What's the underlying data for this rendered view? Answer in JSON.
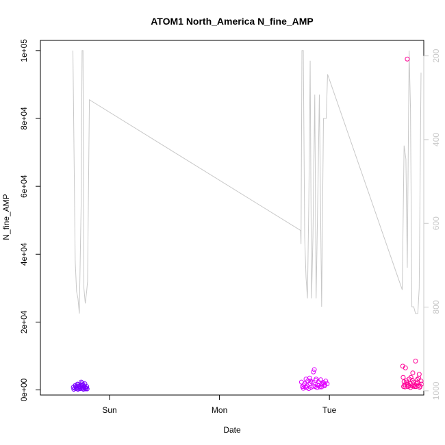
{
  "chart_data": {
    "type": "scatter",
    "title": "ATOM1 North_America N_fine_AMP",
    "xlabel": "Date",
    "ylabel": "N_fine_AMP",
    "ylabel_right": "",
    "x_tick_labels": [
      "Sun",
      "Mon",
      "Tue"
    ],
    "y_tick_labels": [
      "0e+00",
      "2e+04",
      "4e+04",
      "6e+04",
      "8e+04",
      "1e+05"
    ],
    "y_ticks": [
      0,
      20000,
      40000,
      60000,
      80000,
      100000
    ],
    "y_right_tick_labels": [
      "200",
      "400",
      "600",
      "800",
      "1000"
    ],
    "y_right_ticks": [
      200,
      400,
      600,
      800,
      1000
    ],
    "xlim_hours": [
      -15.1,
      68.6
    ],
    "ylim": [
      -1500,
      103000
    ],
    "y2lim": [
      1010,
      163
    ],
    "x_tick_hours": [
      0,
      24,
      48
    ],
    "grid": false,
    "line_series": {
      "color": "#c8c8c8",
      "points": [
        [
          -8.0,
          100000
        ],
        [
          -7.5,
          38000
        ],
        [
          -7.2,
          29000
        ],
        [
          -6.9,
          27000
        ],
        [
          -6.6,
          22500
        ],
        [
          -6.2,
          55000
        ],
        [
          -6.0,
          100000
        ],
        [
          -5.8,
          100000
        ],
        [
          -5.6,
          30000
        ],
        [
          -5.3,
          25500
        ],
        [
          -5.0,
          29000
        ],
        [
          -4.8,
          32000
        ],
        [
          -4.4,
          85500
        ],
        [
          41.7,
          47000
        ],
        [
          41.8,
          43000
        ],
        [
          42.0,
          100000
        ],
        [
          42.3,
          100000
        ],
        [
          42.6,
          45000
        ],
        [
          42.9,
          33000
        ],
        [
          43.2,
          27000
        ],
        [
          43.5,
          55000
        ],
        [
          43.8,
          97000
        ],
        [
          44.1,
          27000
        ],
        [
          44.4,
          45000
        ],
        [
          44.8,
          87000
        ],
        [
          45.1,
          27000
        ],
        [
          45.5,
          60000
        ],
        [
          45.8,
          87000
        ],
        [
          46.3,
          24500
        ],
        [
          46.7,
          80000
        ],
        [
          47.3,
          80000
        ],
        [
          47.6,
          93000
        ],
        [
          63.9,
          29500
        ],
        [
          64.3,
          72000
        ],
        [
          64.7,
          68000
        ],
        [
          65.0,
          36000
        ],
        [
          65.4,
          100000
        ],
        [
          65.7,
          83000
        ],
        [
          66.0,
          24500
        ],
        [
          66.4,
          24500
        ],
        [
          66.8,
          22500
        ],
        [
          67.3,
          22500
        ],
        [
          67.6,
          30000
        ],
        [
          68.0,
          93500
        ]
      ]
    },
    "scatter_series": [
      {
        "color": "#7a00ff",
        "points": [
          [
            -7.6,
            500
          ],
          [
            -7.4,
            1000
          ],
          [
            -7.2,
            700
          ],
          [
            -7.0,
            300
          ],
          [
            -6.8,
            1500
          ],
          [
            -6.6,
            900
          ],
          [
            -6.4,
            400
          ],
          [
            -6.2,
            2300
          ],
          [
            -6.0,
            800
          ],
          [
            -5.8,
            1200
          ],
          [
            -5.6,
            600
          ],
          [
            -5.4,
            1800
          ],
          [
            -5.2,
            300
          ],
          [
            -5.0,
            1000
          ],
          [
            -7.8,
            200
          ],
          [
            -7.0,
            1700
          ],
          [
            -6.5,
            500
          ],
          [
            -6.1,
            1300
          ],
          [
            -5.7,
            200
          ],
          [
            -5.3,
            700
          ],
          [
            -7.9,
            800
          ],
          [
            -7.3,
            400
          ],
          [
            -6.7,
            1100
          ],
          [
            -6.3,
            1500
          ],
          [
            -5.9,
            400
          ],
          [
            -5.5,
            900
          ],
          [
            -5.1,
            500
          ],
          [
            -6.9,
            200
          ],
          [
            -7.5,
            1300
          ],
          [
            -6.0,
            2000
          ],
          [
            -4.9,
            300
          ],
          [
            -5.8,
            1600
          ]
        ]
      },
      {
        "color": "#e000ff",
        "points": [
          [
            41.9,
            2300
          ],
          [
            42.1,
            1000
          ],
          [
            42.3,
            500
          ],
          [
            42.6,
            1800
          ],
          [
            42.9,
            3200
          ],
          [
            43.1,
            1200
          ],
          [
            43.3,
            2700
          ],
          [
            43.5,
            400
          ],
          [
            43.8,
            1900
          ],
          [
            44.0,
            800
          ],
          [
            44.2,
            2300
          ],
          [
            44.5,
            5300
          ],
          [
            44.7,
            6000
          ],
          [
            44.9,
            1000
          ],
          [
            45.1,
            3200
          ],
          [
            45.4,
            1500
          ],
          [
            45.6,
            2400
          ],
          [
            45.9,
            900
          ],
          [
            46.1,
            3000
          ],
          [
            46.4,
            1700
          ],
          [
            46.6,
            2200
          ],
          [
            46.9,
            1200
          ],
          [
            47.2,
            2600
          ],
          [
            47.5,
            1800
          ],
          [
            42.4,
            1400
          ],
          [
            43.0,
            700
          ],
          [
            43.7,
            3500
          ],
          [
            44.4,
            1100
          ],
          [
            45.0,
            2800
          ],
          [
            45.7,
            1300
          ],
          [
            46.3,
            900
          ],
          [
            47.0,
            1500
          ],
          [
            42.7,
            900
          ],
          [
            43.9,
            2600
          ],
          [
            45.3,
            700
          ],
          [
            46.8,
            2000
          ]
        ]
      },
      {
        "color": "#ff0096",
        "points": [
          [
            64.0,
            7000
          ],
          [
            64.2,
            1000
          ],
          [
            64.4,
            1500
          ],
          [
            64.6,
            6500
          ],
          [
            64.8,
            2700
          ],
          [
            65.0,
            97500
          ],
          [
            65.2,
            1000
          ],
          [
            65.4,
            3200
          ],
          [
            65.6,
            1800
          ],
          [
            65.8,
            3700
          ],
          [
            66.0,
            1200
          ],
          [
            66.2,
            5000
          ],
          [
            66.4,
            2300
          ],
          [
            66.6,
            1000
          ],
          [
            66.8,
            8500
          ],
          [
            67.0,
            1900
          ],
          [
            67.2,
            3100
          ],
          [
            67.4,
            1400
          ],
          [
            67.6,
            4600
          ],
          [
            67.8,
            1100
          ],
          [
            68.0,
            2600
          ],
          [
            64.1,
            3700
          ],
          [
            64.5,
            900
          ],
          [
            64.9,
            2100
          ],
          [
            65.3,
            1300
          ],
          [
            65.7,
            700
          ],
          [
            66.1,
            2900
          ],
          [
            66.5,
            1500
          ],
          [
            66.9,
            1000
          ],
          [
            67.3,
            2200
          ],
          [
            67.7,
            800
          ],
          [
            68.1,
            1700
          ],
          [
            64.3,
            2400
          ],
          [
            65.1,
            1700
          ],
          [
            66.3,
            1100
          ],
          [
            67.5,
            3500
          ]
        ]
      }
    ]
  }
}
